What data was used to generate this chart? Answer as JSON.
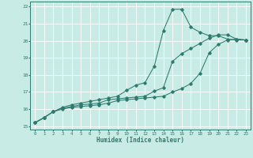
{
  "title": "",
  "xlabel": "Humidex (Indice chaleur)",
  "ylabel": "",
  "bg_color": "#c8ebe5",
  "line_color": "#2d7a6e",
  "grid_color": "#ffffff",
  "xlim": [
    -0.5,
    23.5
  ],
  "ylim": [
    14.8,
    22.3
  ],
  "xticks": [
    0,
    1,
    2,
    3,
    4,
    5,
    6,
    7,
    8,
    9,
    10,
    11,
    12,
    13,
    14,
    15,
    16,
    17,
    18,
    19,
    20,
    21,
    22,
    23
  ],
  "yticks": [
    15,
    16,
    17,
    18,
    19,
    20,
    21,
    22
  ],
  "line1_x": [
    0,
    1,
    2,
    3,
    4,
    5,
    6,
    7,
    8,
    9,
    10,
    11,
    12,
    13,
    14,
    15,
    16,
    17,
    18,
    19,
    20,
    21,
    22,
    23
  ],
  "line1_y": [
    15.2,
    15.5,
    15.85,
    16.1,
    16.25,
    16.35,
    16.45,
    16.55,
    16.65,
    16.75,
    17.1,
    17.4,
    17.55,
    18.5,
    20.6,
    21.85,
    21.85,
    20.8,
    20.5,
    20.3,
    20.3,
    20.1,
    20.05,
    20.05
  ],
  "line2_x": [
    0,
    1,
    2,
    3,
    4,
    5,
    6,
    7,
    8,
    9,
    10,
    11,
    12,
    13,
    14,
    15,
    16,
    17,
    18,
    19,
    20,
    21,
    22,
    23
  ],
  "line2_y": [
    15.2,
    15.5,
    15.85,
    16.05,
    16.15,
    16.25,
    16.3,
    16.35,
    16.55,
    16.6,
    16.65,
    16.7,
    16.75,
    17.05,
    17.25,
    18.8,
    19.25,
    19.55,
    19.85,
    20.15,
    20.35,
    20.35,
    20.1,
    20.05
  ],
  "line3_x": [
    0,
    1,
    2,
    3,
    4,
    5,
    6,
    7,
    8,
    9,
    10,
    11,
    12,
    13,
    14,
    15,
    16,
    17,
    18,
    19,
    20,
    21,
    22,
    23
  ],
  "line3_y": [
    15.2,
    15.5,
    15.85,
    16.0,
    16.1,
    16.15,
    16.2,
    16.25,
    16.35,
    16.5,
    16.55,
    16.6,
    16.65,
    16.7,
    16.75,
    17.0,
    17.2,
    17.5,
    18.1,
    19.3,
    19.8,
    20.05,
    20.1,
    20.05
  ]
}
